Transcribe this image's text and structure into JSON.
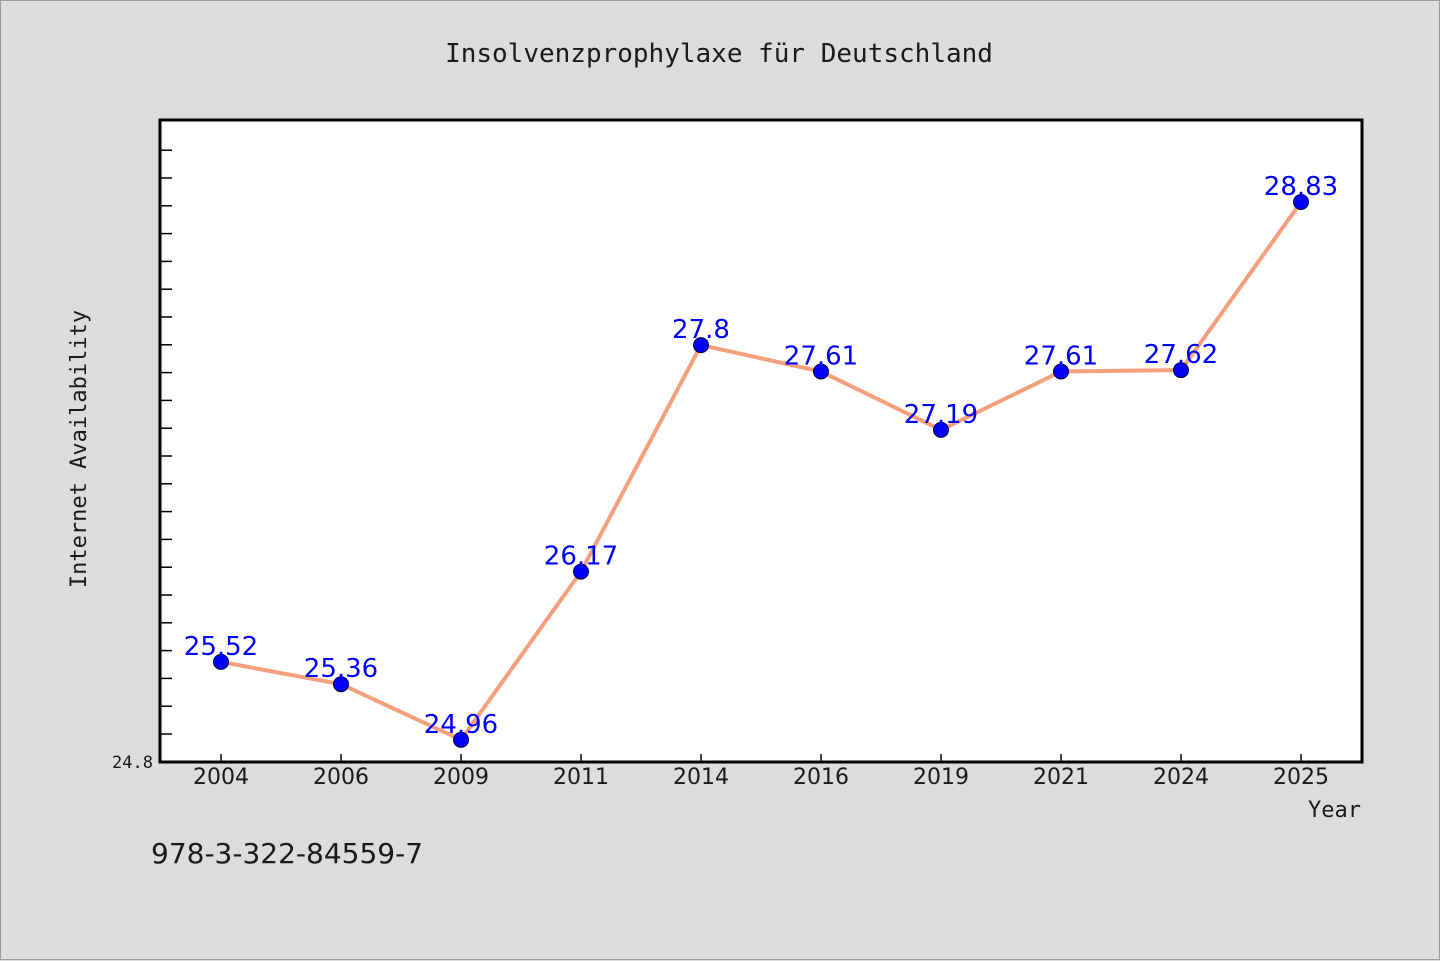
{
  "chart_data": {
    "type": "line",
    "title": "Insolvenzprophylaxe für Deutschland",
    "xlabel": "Year",
    "ylabel": "Internet Availability",
    "categories": [
      "2004",
      "2006",
      "2009",
      "2011",
      "2014",
      "2016",
      "2019",
      "2021",
      "2024",
      "2025"
    ],
    "series": [
      {
        "values": [
          25.52,
          25.36,
          24.96,
          26.17,
          27.8,
          27.61,
          27.19,
          27.61,
          27.62,
          28.83
        ],
        "labels": [
          "25.52",
          "25.36",
          "24.96",
          "26.17",
          "27.8",
          "27.61",
          "27.19",
          "27.61",
          "27.62",
          "28.83"
        ]
      }
    ],
    "ylim": [
      24.8,
      29.42
    ],
    "yticks_labeled": [
      "24.8"
    ],
    "grid": false,
    "colors": {
      "line": "#f4a07c",
      "marker": "#0000ff",
      "data_label": "#0000ff",
      "background": "#dcdcdc",
      "plot_background": "#ffffff"
    }
  },
  "footnote": "978-3-322-84559-7"
}
